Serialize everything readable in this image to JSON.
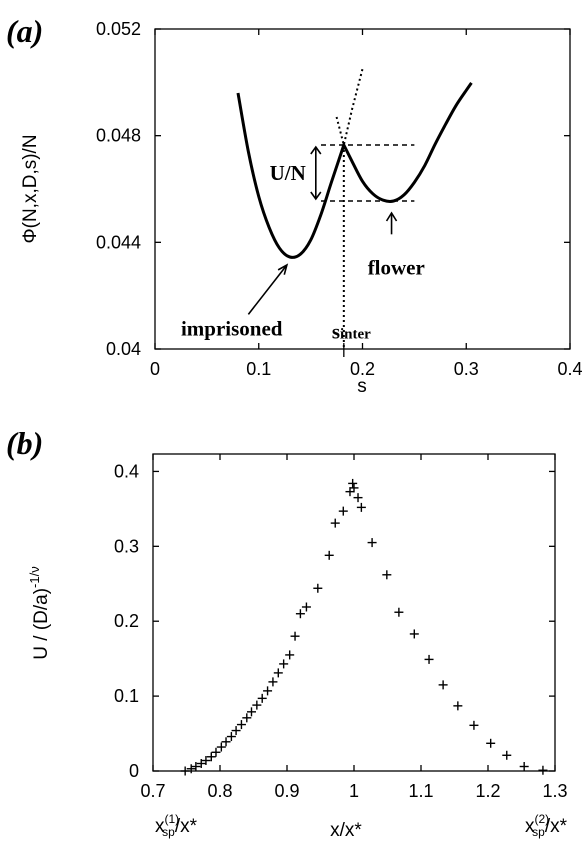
{
  "chart_data": [
    {
      "type": "line",
      "panel_label": "(a)",
      "xlabel": "s",
      "ylabel": "Φ(N,x,D,s)/N",
      "xlim": [
        0,
        0.4
      ],
      "ylim": [
        0.04,
        0.052
      ],
      "x_ticks": [
        "0",
        "0.1",
        "0.2",
        "0.3",
        "0.4"
      ],
      "y_ticks": [
        "0.04",
        "0.044",
        "0.048",
        "0.052"
      ],
      "series": [
        {
          "style": "solid",
          "x": [
            0.08,
            0.09,
            0.1,
            0.11,
            0.12,
            0.13,
            0.14,
            0.15,
            0.16,
            0.17,
            0.182,
            0.19,
            0.2,
            0.21,
            0.22,
            0.23,
            0.24,
            0.25,
            0.26,
            0.27,
            0.28,
            0.29,
            0.3,
            0.305
          ],
          "y": [
            0.0496,
            0.0474,
            0.04572,
            0.04456,
            0.04378,
            0.04345,
            0.04355,
            0.04408,
            0.04505,
            0.04625,
            0.04765,
            0.04703,
            0.04629,
            0.04582,
            0.04558,
            0.04555,
            0.04578,
            0.04625,
            0.04688,
            0.04768,
            0.04842,
            0.04912,
            0.0497,
            0.04998
          ]
        },
        {
          "style": "dotted",
          "x": [
            0.175,
            0.182,
            0.19,
            0.2
          ],
          "y": [
            0.0487,
            0.04765,
            0.049,
            0.0505
          ]
        }
      ],
      "annotations": {
        "barrier_label": "U/N",
        "imprisoned_label": "imprisoned",
        "flower_label": "flower",
        "s_inter_base": "s",
        "s_inter_sub": "inter"
      },
      "reference_values": {
        "s_inter": 0.182,
        "barrier_top": 0.04765,
        "flower_min": 0.04555,
        "imprisoned_min": {
          "x": 0.13,
          "y": 0.04345
        },
        "flower_min_point": {
          "x": 0.228,
          "y": 0.04555
        }
      },
      "grid": false
    },
    {
      "type": "scatter",
      "panel_label": "(b)",
      "xlabel": "x/x*",
      "ylabel": "U / (D/a)",
      "ylabel_sup": "-1/ν",
      "xlim": [
        0.7,
        1.3
      ],
      "ylim": [
        0,
        0.4
      ],
      "x_ticks": [
        "0.7",
        "0.8",
        "0.9",
        "1",
        "1.1",
        "1.2",
        "1.3"
      ],
      "y_ticks": [
        "0",
        "0.1",
        "0.2",
        "0.3",
        "0.4"
      ],
      "x_end_labels": [
        {
          "base": "x",
          "sup": "(1)",
          "sub": "sp",
          "rest": "/x*"
        },
        {
          "base": "x",
          "sup": "(2)",
          "sub": "sp",
          "rest": "/x*"
        }
      ],
      "marker": "+",
      "series": [
        {
          "x": [
            0.748,
            0.757,
            0.764,
            0.772,
            0.779,
            0.787,
            0.794,
            0.802,
            0.809,
            0.817,
            0.824,
            0.832,
            0.84,
            0.847,
            0.855,
            0.863,
            0.871,
            0.879,
            0.887,
            0.895,
            0.904,
            0.912,
            0.92,
            0.929,
            0.946,
            0.963,
            0.972,
            0.984,
            0.994,
            0.998,
            1.0,
            1.006,
            1.011,
            1.027,
            1.049,
            1.067,
            1.09,
            1.112,
            1.133,
            1.155,
            1.179,
            1.204,
            1.228,
            1.254,
            1.282
          ],
          "y": [
            0.0,
            0.003,
            0.006,
            0.01,
            0.014,
            0.019,
            0.025,
            0.032,
            0.039,
            0.046,
            0.054,
            0.062,
            0.071,
            0.079,
            0.088,
            0.097,
            0.107,
            0.119,
            0.131,
            0.143,
            0.155,
            0.18,
            0.21,
            0.219,
            0.244,
            0.288,
            0.331,
            0.347,
            0.373,
            0.384,
            0.378,
            0.365,
            0.352,
            0.305,
            0.262,
            0.212,
            0.183,
            0.149,
            0.115,
            0.087,
            0.061,
            0.037,
            0.021,
            0.006,
            0.001
          ]
        }
      ],
      "grid": false
    }
  ]
}
